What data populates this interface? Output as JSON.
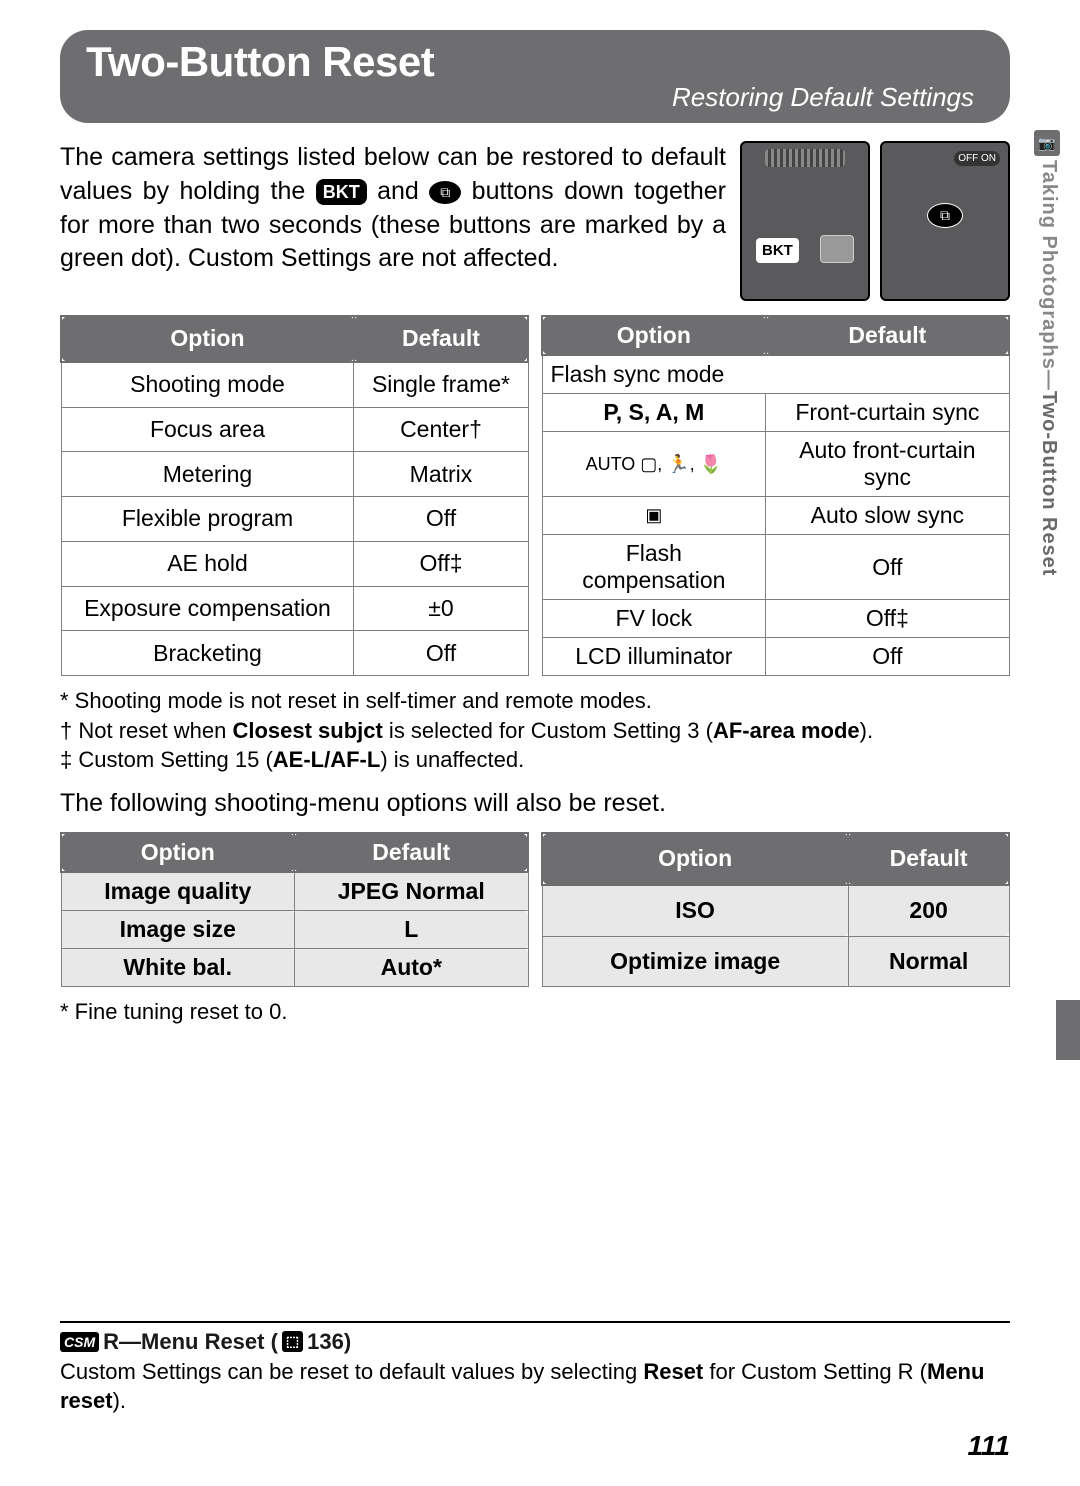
{
  "title": {
    "main": "Two-Button Reset",
    "sub": "Restoring Default Settings"
  },
  "intro": {
    "part1": "The camera settings listed below can be restored to default values by holding the ",
    "badge1": "BKT",
    "part2": " and ",
    "badge2": "⧉",
    "part3": " buttons down together for more than two seconds (these buttons are marked by a green dot).  Custom Settings are not affected."
  },
  "side_tab": {
    "line1": "Taking Photographs—",
    "line2": "Two-Button Reset"
  },
  "camera": {
    "bkt": "BKT",
    "switch": "OFF  ON",
    "oval": "⧉"
  },
  "table_headers": {
    "option": "Option",
    "default": "Default"
  },
  "table1_left": [
    {
      "opt": "Shooting mode",
      "def": "Single frame*"
    },
    {
      "opt": "Focus area",
      "def": "Center†"
    },
    {
      "opt": "Metering",
      "def": "Matrix"
    },
    {
      "opt": "Flexible program",
      "def": "Off"
    },
    {
      "opt": "AE hold",
      "def": "Off‡"
    },
    {
      "opt": "Exposure compensation",
      "def": "±0"
    },
    {
      "opt": "Bracketing",
      "def": "Off"
    }
  ],
  "table1_right": {
    "header_span": "Flash sync mode",
    "rows": [
      {
        "opt": "P, S, A, M",
        "opt_bold": true,
        "def": "Front-curtain sync"
      },
      {
        "opt": "AUTO ▢, 🏃, 🌷",
        "def": "Auto front-curtain sync"
      },
      {
        "opt": "▣",
        "def": "Auto slow sync"
      }
    ],
    "rest": [
      {
        "opt": "Flash compensation",
        "def": "Off"
      },
      {
        "opt": "FV lock",
        "def": "Off‡"
      },
      {
        "opt": "LCD illuminator",
        "def": "Off"
      }
    ]
  },
  "footnotes1": {
    "f1": "* Shooting mode is not reset in self-timer and remote modes.",
    "f2a": "† Not reset when ",
    "f2b": "Closest subjct",
    "f2c": " is selected for Custom Setting 3 (",
    "f2d": "AF-area mode",
    "f2e": ").",
    "f3a": "‡ Custom Setting 15 (",
    "f3b": "AE-L/AF-L",
    "f3c": ") is unaffected."
  },
  "mid_text": "The following shooting-menu options will also be reset.",
  "table2_left": [
    {
      "opt": "Image quality",
      "def": "JPEG Normal"
    },
    {
      "opt": "Image size",
      "def": "L"
    },
    {
      "opt": "White bal.",
      "def": "Auto*"
    }
  ],
  "table2_right": [
    {
      "opt": "ISO",
      "def": "200"
    },
    {
      "opt": "Optimize image",
      "def": "Normal"
    }
  ],
  "footnotes2": "* Fine tuning reset to 0.",
  "note": {
    "csm": "CSM",
    "title_a": " R—Menu Reset (",
    "pg_icon": "⬚",
    "title_b": " 136)",
    "body_a": "Custom Settings can be reset to default values by selecting ",
    "body_bold": "Reset",
    "body_b": " for Custom Setting R (",
    "body_bold2": "Menu reset",
    "body_c": ")."
  },
  "page_number": "111"
}
